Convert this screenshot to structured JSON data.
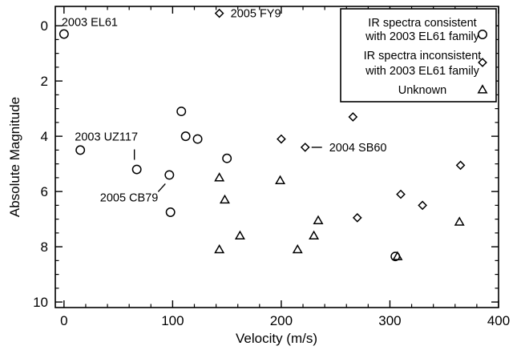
{
  "chart_data": {
    "type": "scatter",
    "xlabel": "Velocity (m/s)",
    "ylabel": "Absolute Magnitude",
    "xlim": [
      -8,
      400
    ],
    "ylim": [
      10.2,
      -0.7
    ],
    "y_inverted": true,
    "x_ticks": [
      0,
      100,
      200,
      300,
      400
    ],
    "y_ticks": [
      0,
      2,
      4,
      6,
      8,
      10
    ],
    "grid": false,
    "legend_position": "top-right",
    "legend": [
      {
        "marker": "circle",
        "lines": [
          "IR spectra consistent",
          "with 2003 EL61 family"
        ]
      },
      {
        "marker": "diamond",
        "lines": [
          "IR spectra inconsistent",
          "with 2003 EL61 family"
        ]
      },
      {
        "marker": "triangle",
        "lines": [
          "Unknown"
        ]
      }
    ],
    "series": [
      {
        "marker": "circle",
        "points": [
          {
            "x": 0,
            "y": 0.3
          },
          {
            "x": 15,
            "y": 4.5
          },
          {
            "x": 67,
            "y": 5.2
          },
          {
            "x": 97,
            "y": 5.4
          },
          {
            "x": 98,
            "y": 6.75
          },
          {
            "x": 108,
            "y": 3.1
          },
          {
            "x": 112,
            "y": 4.0
          },
          {
            "x": 123,
            "y": 4.1
          },
          {
            "x": 150,
            "y": 4.8
          },
          {
            "x": 305,
            "y": 8.35
          }
        ]
      },
      {
        "marker": "diamond",
        "points": [
          {
            "x": 143,
            "y": -0.45
          },
          {
            "x": 200,
            "y": 4.1
          },
          {
            "x": 222,
            "y": 4.4
          },
          {
            "x": 266,
            "y": 3.3
          },
          {
            "x": 270,
            "y": 6.95
          },
          {
            "x": 310,
            "y": 6.1
          },
          {
            "x": 330,
            "y": 6.5
          },
          {
            "x": 365,
            "y": 5.05
          }
        ]
      },
      {
        "marker": "triangle",
        "points": [
          {
            "x": 143,
            "y": 5.5
          },
          {
            "x": 143,
            "y": 8.1
          },
          {
            "x": 148,
            "y": 6.3
          },
          {
            "x": 162,
            "y": 7.6
          },
          {
            "x": 199,
            "y": 5.6
          },
          {
            "x": 215,
            "y": 8.1
          },
          {
            "x": 230,
            "y": 7.6
          },
          {
            "x": 234,
            "y": 7.05
          },
          {
            "x": 307,
            "y": 8.35
          },
          {
            "x": 364,
            "y": 7.1
          }
        ]
      }
    ],
    "annotations": [
      {
        "text": "2003 EL61",
        "x": 0,
        "y": 0.3
      },
      {
        "text": "2005 FY9",
        "x": 143,
        "y": -0.45
      },
      {
        "text": "2003 UZ117",
        "x": 67,
        "y": 5.2
      },
      {
        "text": "2005 CB79",
        "x": 97,
        "y": 5.4
      },
      {
        "text": "2004 SB60",
        "x": 222,
        "y": 4.4
      }
    ]
  }
}
